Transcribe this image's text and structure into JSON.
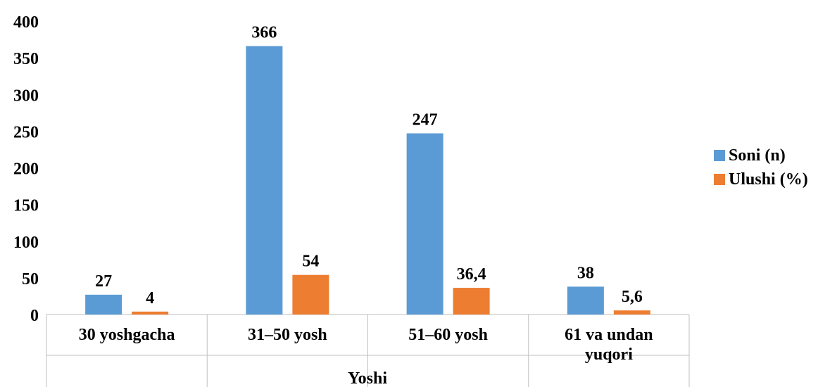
{
  "chart_data": {
    "type": "bar",
    "categories": [
      "30 yoshgacha",
      "31–50 yosh",
      "51–60 yosh",
      "61 va undan yuqori"
    ],
    "category_lines": [
      [
        "30 yoshgacha"
      ],
      [
        "31–50 yosh"
      ],
      [
        "51–60 yosh"
      ],
      [
        "61 va undan",
        "yuqori"
      ]
    ],
    "series": [
      {
        "name": "Soni (n)",
        "values": [
          27,
          366,
          247,
          38
        ],
        "labels": [
          "27",
          "366",
          "247",
          "38"
        ],
        "color": "#5B9BD5"
      },
      {
        "name": "Ulushi (%)",
        "values": [
          4,
          54,
          36.4,
          5.6
        ],
        "labels": [
          "4",
          "54",
          "36,4",
          "5,6"
        ],
        "color": "#ED7D31"
      }
    ],
    "title": "",
    "xlabel": "Yoshi",
    "ylabel": "",
    "ylim": [
      0,
      400
    ],
    "yticks": [
      0,
      50,
      100,
      150,
      200,
      250,
      300,
      350,
      400
    ],
    "grid": false,
    "legend": "right"
  }
}
